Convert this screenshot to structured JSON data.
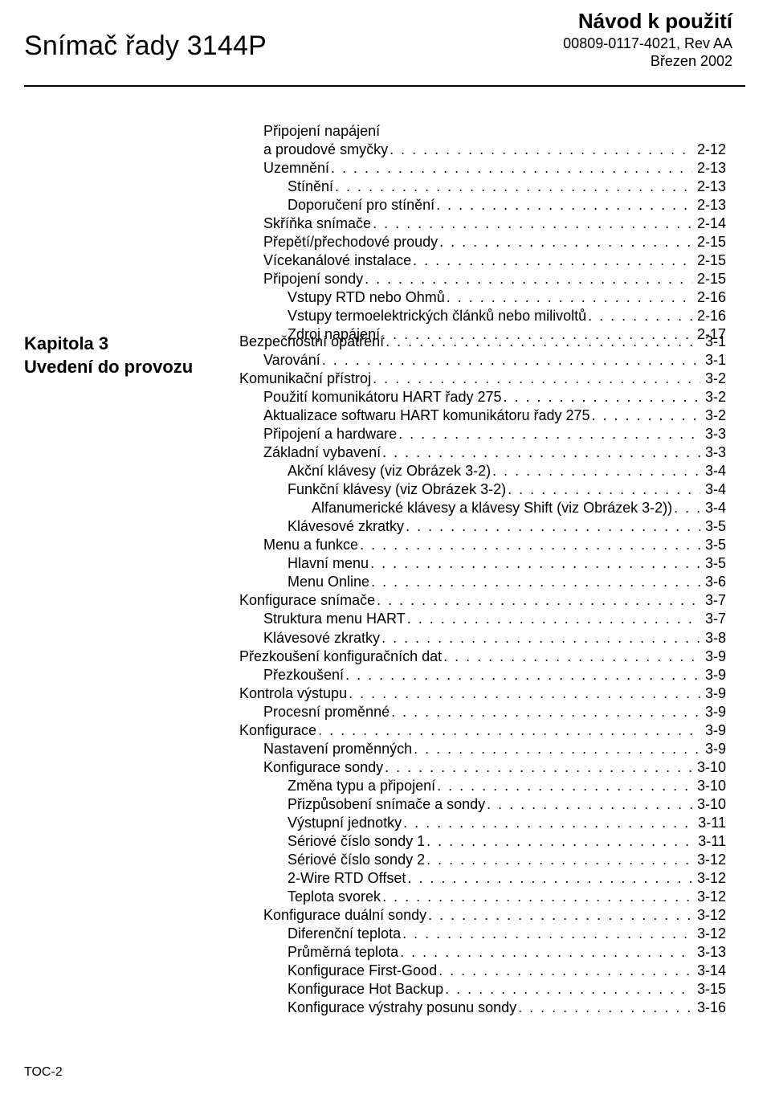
{
  "header": {
    "left_title": "Snímač řady 3144P",
    "nav_title": "Návod k použití",
    "doc_number": "00809-0117-4021, Rev AA",
    "date": "Březen 2002"
  },
  "sidebar": {
    "chapter": "Kapitola 3",
    "title": "Uvedení do provozu"
  },
  "footer": "TOC-2",
  "block_a": [
    {
      "indent": 1,
      "label": "Připojení napájení",
      "page": ""
    },
    {
      "indent": 1,
      "label": "a proudové smyčky",
      "page": "2-12"
    },
    {
      "indent": 1,
      "label": "Uzemnění",
      "page": "2-13"
    },
    {
      "indent": 2,
      "label": "Stínění",
      "page": "2-13"
    },
    {
      "indent": 2,
      "label": "Doporučení pro stínění",
      "page": "2-13"
    },
    {
      "indent": 1,
      "label": "Skříňka snímače",
      "page": "2-14"
    },
    {
      "indent": 1,
      "label": "Přepětí/přechodové proudy",
      "page": "2-15"
    },
    {
      "indent": 1,
      "label": "Vícekanálové instalace",
      "page": "2-15"
    },
    {
      "indent": 1,
      "label": "Připojení sondy",
      "page": "2-15"
    },
    {
      "indent": 2,
      "label": "Vstupy RTD nebo Ohmů",
      "page": "2-16"
    },
    {
      "indent": 2,
      "label": "Vstupy termoelektrických článků nebo milivoltů",
      "page": "2-16"
    },
    {
      "indent": 2,
      "label": "Zdroj napájení",
      "page": "2-17"
    }
  ],
  "block_b": [
    {
      "indent": 0,
      "label": "Bezpečnostní opatření",
      "page": "3-1"
    },
    {
      "indent": 1,
      "label": "Varování",
      "page": "3-1"
    },
    {
      "indent": 0,
      "label": "Komunikační přístroj",
      "page": "3-2"
    },
    {
      "indent": 1,
      "label": "Použití komunikátoru HART řady 275",
      "page": "3-2"
    },
    {
      "indent": 1,
      "label": "Aktualizace softwaru HART komunikátoru řady 275",
      "page": "3-2"
    },
    {
      "indent": 1,
      "label": "Připojení a hardware",
      "page": "3-3"
    },
    {
      "indent": 1,
      "label": "Základní vybavení",
      "page": "3-3"
    },
    {
      "indent": 2,
      "label": "Akční klávesy (viz Obrázek 3-2)",
      "page": "3-4"
    },
    {
      "indent": 2,
      "label": "Funkční klávesy (viz Obrázek 3-2)",
      "page": "3-4"
    },
    {
      "indent": 3,
      "label": "Alfanumerické klávesy a klávesy Shift (viz Obrázek 3-2))",
      "page": "3-4"
    },
    {
      "indent": 2,
      "label": "Klávesové zkratky",
      "page": "3-5"
    },
    {
      "indent": 1,
      "label": "Menu a funkce",
      "page": "3-5"
    },
    {
      "indent": 2,
      "label": "Hlavní menu",
      "page": "3-5"
    },
    {
      "indent": 2,
      "label": "Menu Online",
      "page": "3-6"
    },
    {
      "indent": 0,
      "label": "Konfigurace snímače",
      "page": "3-7"
    },
    {
      "indent": 1,
      "label": "Struktura menu HART",
      "page": "3-7"
    },
    {
      "indent": 1,
      "label": "Klávesové zkratky",
      "page": "3-8"
    },
    {
      "indent": 0,
      "label": "Přezkoušení konfiguračních dat",
      "page": "3-9"
    },
    {
      "indent": 1,
      "label": "Přezkoušení",
      "page": "3-9"
    },
    {
      "indent": 0,
      "label": "Kontrola výstupu",
      "page": "3-9"
    },
    {
      "indent": 1,
      "label": "Procesní proměnné",
      "page": "3-9"
    },
    {
      "indent": 0,
      "label": "Konfigurace",
      "page": "3-9"
    },
    {
      "indent": 1,
      "label": "Nastavení proměnných",
      "page": "3-9"
    },
    {
      "indent": 1,
      "label": "Konfigurace sondy",
      "page": "3-10"
    },
    {
      "indent": 2,
      "label": "Změna typu a připojení",
      "page": "3-10"
    },
    {
      "indent": 2,
      "label": "Přizpůsobení snímače a sondy",
      "page": "3-10"
    },
    {
      "indent": 2,
      "label": "Výstupní jednotky",
      "page": "3-11"
    },
    {
      "indent": 2,
      "label": "Sériové číslo sondy 1",
      "page": "3-11"
    },
    {
      "indent": 2,
      "label": "Sériové číslo sondy 2",
      "page": "3-12"
    },
    {
      "indent": 2,
      "label": "2-Wire RTD Offset",
      "page": "3-12"
    },
    {
      "indent": 2,
      "label": "Teplota svorek",
      "page": "3-12"
    },
    {
      "indent": 1,
      "label": "Konfigurace duální sondy",
      "page": "3-12"
    },
    {
      "indent": 2,
      "label": "Diferenční teplota",
      "page": "3-12"
    },
    {
      "indent": 2,
      "label": "Průměrná teplota",
      "page": "3-13"
    },
    {
      "indent": 2,
      "label": "Konfigurace First-Good",
      "page": "3-14"
    },
    {
      "indent": 2,
      "label": "Konfigurace Hot Backup",
      "page": "3-15"
    },
    {
      "indent": 2,
      "label": "Konfigurace výstrahy posunu sondy",
      "page": "3-16"
    }
  ]
}
